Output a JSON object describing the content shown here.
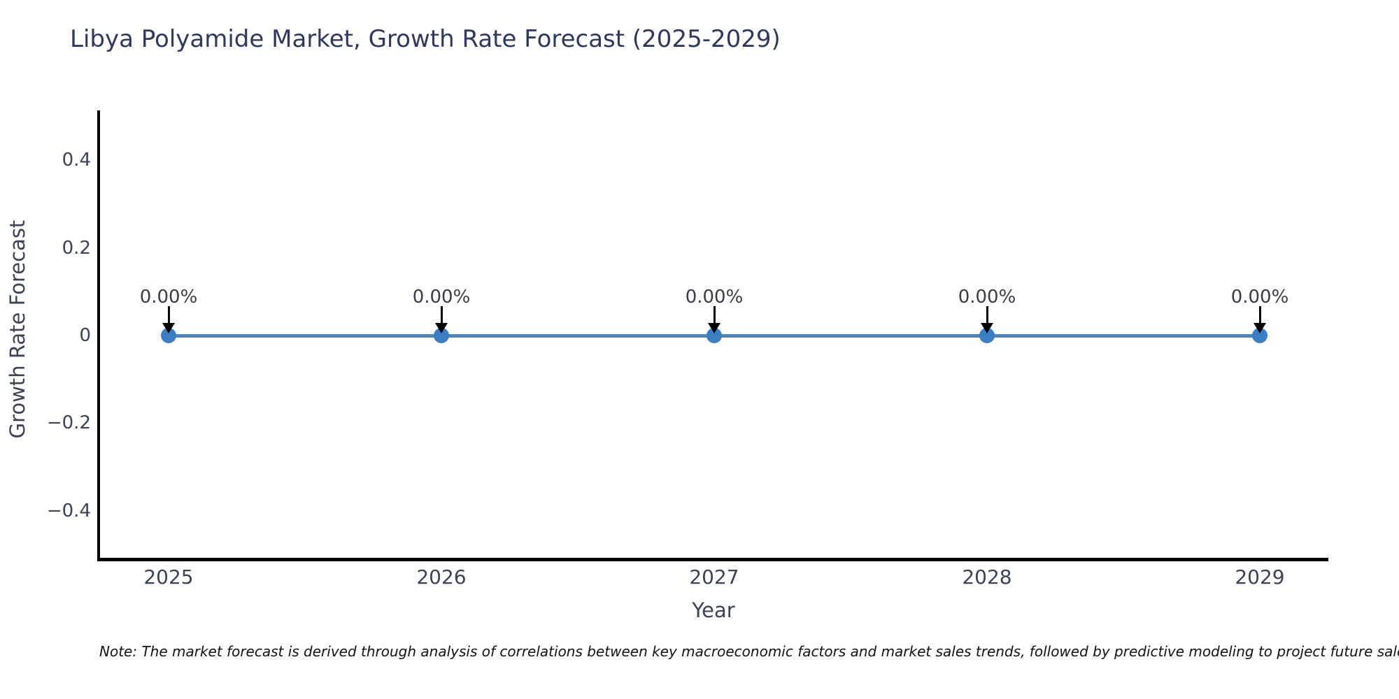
{
  "title": "Libya Polyamide Market, Growth Rate Forecast (2025-2029)",
  "note": "Note: The market forecast is derived through analysis of correlations between key macroeconomic factors and market sales trends, followed by predictive modeling to project future sales.",
  "chart_data": {
    "type": "line",
    "title": "Libya Polyamide Market, Growth Rate Forecast (2025-2029)",
    "xlabel": "Year",
    "ylabel": "Growth Rate Forecast",
    "x": [
      2025,
      2026,
      2027,
      2028,
      2029
    ],
    "series": [
      {
        "name": "Growth Rate Forecast",
        "values": [
          0,
          0,
          0,
          0,
          0
        ]
      }
    ],
    "point_labels": [
      "0.00%",
      "0.00%",
      "0.00%",
      "0.00%",
      "0.00%"
    ],
    "ylim": [
      -0.51,
      0.51
    ],
    "ytick_values": [
      0.4,
      0.2,
      0,
      -0.2,
      -0.4
    ],
    "ytick_labels": [
      "0.4",
      "0.2",
      "0",
      "−0.2",
      "−0.4"
    ],
    "grid": false,
    "legend": "none",
    "colors": {
      "line": "#4e86b8",
      "marker": "#3b7ec2",
      "annotation_arrow": "#000000",
      "annotation_text": "#3c3c46",
      "axis": "#000000",
      "tick_label": "#3d4254",
      "title": "#30395a"
    }
  }
}
